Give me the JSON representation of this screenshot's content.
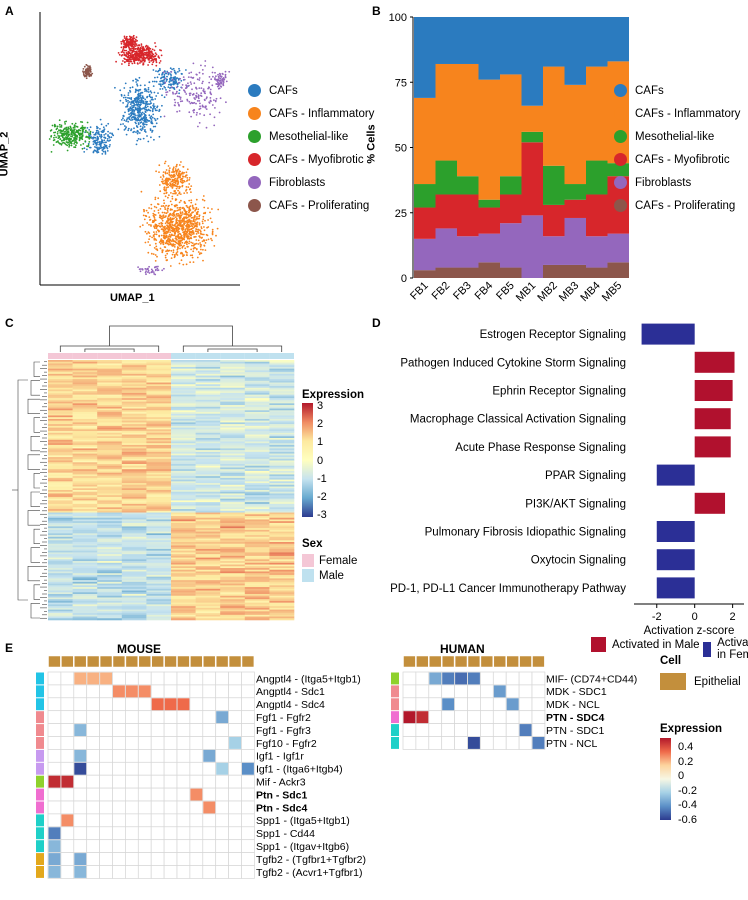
{
  "panel_letters": {
    "a": "A",
    "b": "B",
    "c": "C",
    "d": "D",
    "e": "E"
  },
  "colors": {
    "cafs": "#2b7bbf",
    "inflammatory": "#f7841d",
    "mesothelial": "#2ca02c",
    "myofibrotic": "#d7262b",
    "fibroblasts": "#9467bd",
    "proliferating": "#8c564b",
    "male_bar": "#b1112e",
    "female_bar": "#2b2f96",
    "epithelial": "#c38f3c"
  },
  "panelA": {
    "xlabel": "UMAP_1",
    "ylabel": "UMAP_2",
    "legend": [
      {
        "label": "CAFs",
        "color": "#2b7bbf"
      },
      {
        "label": "CAFs - Inflammatory",
        "color": "#f7841d"
      },
      {
        "label": "Mesothelial-like",
        "color": "#2ca02c"
      },
      {
        "label": "CAFs - Myofibrotic",
        "color": "#d7262b"
      },
      {
        "label": "Fibroblasts",
        "color": "#9467bd"
      },
      {
        "label": "CAFs - Proliferating",
        "color": "#8c564b"
      }
    ]
  },
  "panelB": {
    "ylabel": "% Cells",
    "legend": [
      {
        "label": "CAFs",
        "color": "#2b7bbf"
      },
      {
        "label": "CAFs - Inflammatory",
        "color": "#f7841d"
      },
      {
        "label": "Mesothelial-like",
        "color": "#2ca02c"
      },
      {
        "label": "CAFs - Myofibrotic",
        "color": "#d7262b"
      },
      {
        "label": "Fibroblasts",
        "color": "#9467bd"
      },
      {
        "label": "CAFs - Proliferating",
        "color": "#8c564b"
      }
    ]
  },
  "panelC": {
    "expression_title": "Expression",
    "scale_ticks": [
      "3",
      "2",
      "1",
      "0",
      "-1",
      "-2",
      "-3"
    ],
    "sex_title": "Sex",
    "sex_legend": [
      {
        "label": "Female",
        "color": "#f4c7d6"
      },
      {
        "label": "Male",
        "color": "#bfe1ef"
      }
    ]
  },
  "panelD": {
    "xlabel": "Activation z-score",
    "legend_male": "Activated in Male",
    "legend_female": "Activated in Female"
  },
  "panelE": {
    "mouse_title": "MOUSE",
    "human_title": "HUMAN",
    "cell_title": "Cell",
    "cell_legend": "Epithelial",
    "expression_title": "Expression",
    "scale_ticks": [
      "0.4",
      "0.2",
      "0",
      "-0.2",
      "-0.4",
      "-0.6"
    ],
    "mouse_rows": [
      {
        "label": "Angptl4 - (Itga5+Itgb1)",
        "bold": false,
        "tag": "#22c4e6"
      },
      {
        "label": "Angptl4 - Sdc1",
        "bold": false,
        "tag": "#22c4e6"
      },
      {
        "label": "Angptl4 - Sdc4",
        "bold": false,
        "tag": "#22c4e6"
      },
      {
        "label": "Fgf1 - Fgfr2",
        "bold": false,
        "tag": "#f08a8f"
      },
      {
        "label": "Fgf1 - Fgfr3",
        "bold": false,
        "tag": "#f08a8f"
      },
      {
        "label": "Fgf10 - Fgfr2",
        "bold": false,
        "tag": "#f08a8f"
      },
      {
        "label": "Igf1 - Igf1r",
        "bold": false,
        "tag": "#c79af0"
      },
      {
        "label": "Igf1 - (Itga6+Itgb4)",
        "bold": false,
        "tag": "#c79af0"
      },
      {
        "label": "Mif - Ackr3",
        "bold": false,
        "tag": "#8fd12c"
      },
      {
        "label": "Ptn - Sdc1",
        "bold": true,
        "tag": "#f06ed0"
      },
      {
        "label": "Ptn - Sdc4",
        "bold": true,
        "tag": "#f06ed0"
      },
      {
        "label": "Spp1 - (Itga5+Itgb1)",
        "bold": false,
        "tag": "#1fd0c8"
      },
      {
        "label": "Spp1 - Cd44",
        "bold": false,
        "tag": "#1fd0c8"
      },
      {
        "label": "Spp1 - (Itgav+Itgb6)",
        "bold": false,
        "tag": "#1fd0c8"
      },
      {
        "label": "Tgfb2 - (Tgfbr1+Tgfbr2)",
        "bold": false,
        "tag": "#e3a81c"
      },
      {
        "label": "Tgfb2 - (Acvr1+Tgfbr1)",
        "bold": false,
        "tag": "#e3a81c"
      }
    ],
    "human_rows": [
      {
        "label": "MIF- (CD74+CD44)",
        "bold": false,
        "tag": "#8fd12c"
      },
      {
        "label": "MDK - SDC1",
        "bold": false,
        "tag": "#f08a8f"
      },
      {
        "label": "MDK - NCL",
        "bold": false,
        "tag": "#f08a8f"
      },
      {
        "label": "PTN - SDC4",
        "bold": true,
        "tag": "#f06ed0"
      },
      {
        "label": "PTN - SDC1",
        "bold": false,
        "tag": "#1fd0c8"
      },
      {
        "label": "PTN - NCL",
        "bold": false,
        "tag": "#1fd0c8"
      }
    ]
  },
  "chart_data": [
    {
      "id": "B",
      "type": "bar",
      "stacked": true,
      "categories": [
        "FB1",
        "FB2",
        "FB3",
        "FB4",
        "FB5",
        "MB1",
        "MB2",
        "MB3",
        "MB4",
        "MB5"
      ],
      "ylabel": "% Cells",
      "ylim": [
        0,
        100
      ],
      "yticks": [
        0,
        25,
        50,
        75,
        100
      ],
      "series": [
        {
          "name": "CAFs - Proliferating",
          "color": "#8c564b",
          "values": [
            3,
            4,
            4,
            6,
            4,
            0,
            5,
            5,
            4,
            6
          ]
        },
        {
          "name": "Fibroblasts",
          "color": "#9467bd",
          "values": [
            12,
            15,
            12,
            11,
            17,
            24,
            11,
            18,
            12,
            11
          ]
        },
        {
          "name": "CAFs - Myofibrotic",
          "color": "#d7262b",
          "values": [
            12,
            13,
            16,
            10,
            11,
            28,
            12,
            7,
            16,
            22
          ]
        },
        {
          "name": "Mesothelial-like",
          "color": "#2ca02c",
          "values": [
            9,
            13,
            7,
            3,
            7,
            4,
            15,
            6,
            13,
            5
          ]
        },
        {
          "name": "CAFs - Inflammatory",
          "color": "#f7841d",
          "values": [
            33,
            37,
            43,
            46,
            39,
            10,
            38,
            38,
            36,
            39
          ]
        },
        {
          "name": "CAFs",
          "color": "#2b7bbf",
          "values": [
            31,
            18,
            18,
            24,
            22,
            34,
            19,
            26,
            19,
            17
          ]
        }
      ]
    },
    {
      "id": "D",
      "type": "bar",
      "orientation": "horizontal",
      "categories": [
        "Estrogen Receptor Signaling",
        "Pathogen Induced Cytokine Storm Signaling",
        "Ephrin Receptor Signaling",
        "Macrophage Classical Activation Signaling",
        "Acute Phase Response Signaling",
        "PPAR Signaling",
        "PI3K/AKT Signaling",
        "Pulmonary Fibrosis Idiopathic Signaling",
        "Oxytocin Signaling",
        "PD-1, PD-L1 Cancer Immunotherapy Pathway"
      ],
      "values": [
        -2.8,
        2.1,
        2.0,
        1.9,
        1.9,
        -2.0,
        1.6,
        -2.0,
        -2.0,
        -2.0
      ],
      "xlabel": "Activation z-score",
      "xlim": [
        -3.2,
        2.6
      ],
      "xticks": [
        -2,
        0,
        2
      ]
    },
    {
      "id": "E-mouse",
      "type": "heatmap",
      "n_columns": 16,
      "cells": [
        {
          "row": 0,
          "col": 2,
          "value": 0.25
        },
        {
          "row": 0,
          "col": 3,
          "value": 0.25
        },
        {
          "row": 0,
          "col": 4,
          "value": 0.25
        },
        {
          "row": 1,
          "col": 5,
          "value": 0.3
        },
        {
          "row": 1,
          "col": 6,
          "value": 0.3
        },
        {
          "row": 1,
          "col": 7,
          "value": 0.3
        },
        {
          "row": 2,
          "col": 8,
          "value": 0.35
        },
        {
          "row": 2,
          "col": 9,
          "value": 0.35
        },
        {
          "row": 2,
          "col": 10,
          "value": 0.35
        },
        {
          "row": 3,
          "col": 13,
          "value": -0.35
        },
        {
          "row": 4,
          "col": 2,
          "value": -0.3
        },
        {
          "row": 5,
          "col": 14,
          "value": -0.2
        },
        {
          "row": 6,
          "col": 2,
          "value": -0.3
        },
        {
          "row": 6,
          "col": 12,
          "value": -0.35
        },
        {
          "row": 7,
          "col": 2,
          "value": -0.65
        },
        {
          "row": 7,
          "col": 13,
          "value": -0.2
        },
        {
          "row": 7,
          "col": 15,
          "value": -0.45
        },
        {
          "row": 8,
          "col": 0,
          "value": 0.5
        },
        {
          "row": 8,
          "col": 1,
          "value": 0.5
        },
        {
          "row": 9,
          "col": 11,
          "value": 0.3
        },
        {
          "row": 10,
          "col": 12,
          "value": 0.3
        },
        {
          "row": 11,
          "col": 1,
          "value": 0.3
        },
        {
          "row": 12,
          "col": 0,
          "value": -0.5
        },
        {
          "row": 13,
          "col": 0,
          "value": -0.3
        },
        {
          "row": 14,
          "col": 0,
          "value": -0.35
        },
        {
          "row": 14,
          "col": 2,
          "value": -0.35
        },
        {
          "row": 15,
          "col": 0,
          "value": -0.3
        },
        {
          "row": 15,
          "col": 2,
          "value": -0.3
        }
      ]
    },
    {
      "id": "E-human",
      "type": "heatmap",
      "n_columns": 11,
      "cells": [
        {
          "row": 0,
          "col": 2,
          "value": -0.35
        },
        {
          "row": 0,
          "col": 3,
          "value": -0.5
        },
        {
          "row": 0,
          "col": 4,
          "value": -0.55
        },
        {
          "row": 0,
          "col": 5,
          "value": -0.5
        },
        {
          "row": 1,
          "col": 7,
          "value": -0.4
        },
        {
          "row": 2,
          "col": 3,
          "value": -0.45
        },
        {
          "row": 2,
          "col": 8,
          "value": -0.4
        },
        {
          "row": 3,
          "col": 0,
          "value": 0.55
        },
        {
          "row": 3,
          "col": 1,
          "value": 0.5
        },
        {
          "row": 4,
          "col": 9,
          "value": -0.5
        },
        {
          "row": 5,
          "col": 5,
          "value": -0.65
        },
        {
          "row": 5,
          "col": 10,
          "value": -0.5
        }
      ]
    }
  ]
}
